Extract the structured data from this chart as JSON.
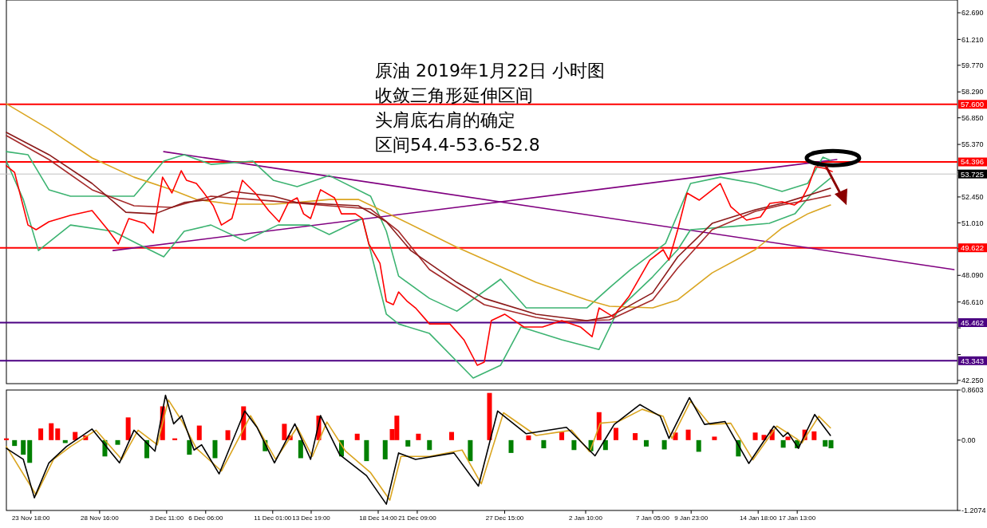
{
  "chart_data": [
    {
      "type": "line",
      "xlim": [
        "2018-11-22T00:00",
        "2019-01-29T00:00"
      ],
      "ylim": [
        42.07,
        63.4
      ],
      "tick_labels": "y",
      "yticks": [
        {
          "value": 62.69,
          "label": "62.690"
        },
        {
          "value": 61.21,
          "label": "61.210"
        },
        {
          "value": 59.77,
          "label": "59.770"
        },
        {
          "value": 58.29,
          "label": "58.290"
        },
        {
          "value": 56.85,
          "label": "56.850"
        },
        {
          "value": 55.37,
          "label": "55.370"
        },
        {
          "value": 53.93,
          "label": null
        },
        {
          "value": 52.45,
          "label": "52.450"
        },
        {
          "value": 51.01,
          "label": "51.010"
        },
        {
          "value": 49.57,
          "label": null
        },
        {
          "value": 48.09,
          "label": "48.090"
        },
        {
          "value": 46.61,
          "label": "46.610"
        },
        {
          "value": 45.17,
          "label": null
        },
        {
          "value": 43.69,
          "label": null
        },
        {
          "value": 42.25,
          "label": "42.250"
        }
      ],
      "annotations": [
        "原油 2019年1月22日 小时图",
        "收敛三角形延伸区间",
        "头肩底右肩的确定",
        "区间54.4-53.6-52.8"
      ],
      "ref_lines": [
        {
          "axis": "y",
          "value": 57.6,
          "label": "57.600",
          "color": "#ff0000"
        },
        {
          "axis": "y",
          "value": 54.396,
          "label": "54.396",
          "color": "#ff0000"
        },
        {
          "axis": "y",
          "value": 53.725,
          "label": "53.725",
          "color": "#c0c0c0"
        },
        {
          "axis": "y",
          "value": 49.622,
          "label": "49.622",
          "color": "#ff0000"
        },
        {
          "axis": "y",
          "value": 45.462,
          "label": "45.462",
          "color": "#4b0082"
        },
        {
          "axis": "y",
          "value": 43.343,
          "label": "43.343",
          "color": "#4b0082"
        }
      ],
      "series": [
        {
          "color": "#800080",
          "x": [
            "2018-12-03T06:00",
            "2019-01-28T18:00"
          ],
          "values": [
            54.97,
            48.41
          ]
        },
        {
          "color": "#800080",
          "x": [
            "2018-11-29T15:00",
            "2019-01-20T09:00"
          ],
          "values": [
            49.47,
            54.53
          ]
        },
        {
          "color": "#3cb371",
          "x": [
            "2018-11-22T00:00",
            "2018-11-23T13:00",
            "2018-11-25T01:00",
            "2018-11-26T14:00",
            "2018-11-28T03:00",
            "2018-12-01T03:00",
            "2018-12-03T06:00",
            "2018-12-04T17:00",
            "2018-12-06T15:00",
            "2018-12-09T15:00",
            "2018-12-11T02:00",
            "2018-12-12T19:00",
            "2018-12-15T02:00",
            "2018-12-18T01:00",
            "2018-12-19T04:00",
            "2018-12-20T01:00",
            "2018-12-22T06:00",
            "2018-12-24T05:00",
            "2018-12-27T08:00",
            "2018-12-29T04:00",
            "2019-01-02T12:00",
            "2019-01-04T07:00",
            "2019-01-05T15:00",
            "2019-01-08T03:00",
            "2019-01-09T22:00",
            "2019-01-12T01:00",
            "2019-01-14T13:00",
            "2019-01-16T11:00",
            "2019-01-18T07:00",
            "2019-01-19T09:00",
            "2019-01-19T22:00"
          ],
          "values": [
            54.97,
            54.8,
            52.85,
            52.49,
            52.49,
            52.49,
            54.44,
            54.8,
            54.26,
            54.44,
            53.38,
            53.02,
            53.64,
            52.49,
            50.54,
            48.05,
            46.81,
            46.1,
            47.88,
            46.28,
            46.28,
            47.52,
            48.41,
            49.87,
            53.2,
            53.55,
            53.2,
            52.76,
            53.2,
            54.66,
            54.49
          ]
        },
        {
          "color": "#3cb371",
          "x": [
            "2018-11-22T00:00",
            "2018-11-23T05:00",
            "2018-11-24T07:00",
            "2018-11-26T14:00",
            "2018-11-29T15:00",
            "2018-12-01T10:00",
            "2018-12-03T06:00",
            "2018-12-04T17:00",
            "2018-12-06T15:00",
            "2018-12-09T01:00",
            "2018-12-11T10:00",
            "2018-12-13T16:00",
            "2018-12-15T02:00",
            "2018-12-17T11:00",
            "2018-12-19T04:00",
            "2018-12-20T01:00",
            "2018-12-22T06:00",
            "2018-12-25T09:00",
            "2018-12-27T08:00",
            "2018-12-28T19:00",
            "2018-12-31T17:00",
            "2019-01-03T09:00",
            "2019-01-04T18:00",
            "2019-01-07T05:00",
            "2019-01-09T00:00",
            "2019-01-09T22:00",
            "2019-01-12T23:00",
            "2019-01-15T13:00",
            "2019-01-17T09:00",
            "2019-01-18T15:00",
            "2019-01-19T22:00"
          ],
          "values": [
            54.44,
            52.31,
            49.47,
            50.89,
            50.54,
            49.83,
            49.12,
            50.54,
            50.89,
            50.01,
            50.89,
            50.89,
            50.36,
            51.25,
            45.93,
            45.39,
            44.86,
            42.38,
            43.09,
            45.22,
            44.51,
            43.97,
            46.19,
            48.01,
            49.52,
            50.63,
            50.81,
            50.98,
            51.51,
            52.67,
            53.49
          ]
        },
        {
          "color": "#daa520",
          "x": [
            "2018-11-22T00:00",
            "2018-11-25T01:00",
            "2018-11-28T03:00",
            "2018-12-01T03:00",
            "2018-12-03T20:00",
            "2018-12-05T14:00",
            "2018-12-08T03:00",
            "2018-12-11T02:00",
            "2018-12-12T19:00",
            "2018-12-15T02:00",
            "2018-12-17T04:00",
            "2018-12-20T01:00",
            "2018-12-24T05:00",
            "2018-12-29T21:00",
            "2019-01-02T12:00",
            "2019-01-04T03:00",
            "2019-01-07T05:00",
            "2019-01-09T00:00",
            "2019-01-11T11:00",
            "2019-01-14T13:00",
            "2019-01-16T11:00",
            "2019-01-18T07:00",
            "2019-01-19T22:00"
          ],
          "values": [
            57.63,
            56.22,
            54.62,
            53.55,
            52.85,
            52.31,
            52.05,
            52.05,
            52.14,
            52.31,
            52.31,
            51.25,
            49.65,
            47.7,
            46.73,
            46.37,
            46.28,
            46.73,
            48.23,
            49.52,
            50.72,
            51.51,
            52.0
          ]
        },
        {
          "color": "#a52a2a",
          "x": [
            "2018-11-22T00:00",
            "2018-11-25T01:00",
            "2018-11-28T03:00",
            "2018-12-01T03:00",
            "2018-12-03T20:00",
            "2018-12-06T15:00",
            "2018-12-11T02:00",
            "2018-12-15T02:00",
            "2018-12-18T01:00",
            "2018-12-20T01:00",
            "2018-12-22T06:00",
            "2018-12-26T04:00",
            "2018-12-29T21:00",
            "2018-12-31T17:00",
            "2019-01-04T03:00",
            "2019-01-07T05:00",
            "2019-01-09T00:00",
            "2019-01-11T11:00",
            "2019-01-14T13:00",
            "2019-01-16T11:00",
            "2019-01-18T07:00",
            "2019-01-19T22:00"
          ],
          "values": [
            55.86,
            54.53,
            52.85,
            51.96,
            51.87,
            52.49,
            52.22,
            51.96,
            51.78,
            50.54,
            48.41,
            46.46,
            45.75,
            45.53,
            45.62,
            46.73,
            48.5,
            50.63,
            51.65,
            52.0,
            52.27,
            52.53
          ]
        },
        {
          "color": "#8b1a1a",
          "x": [
            "2018-11-22T00:00",
            "2018-11-25T01:00",
            "2018-11-28T03:00",
            "2018-11-30T13:00",
            "2018-12-02T15:00",
            "2018-12-04T17:00",
            "2018-12-06T15:00",
            "2018-12-08T03:00",
            "2018-12-11T02:00",
            "2018-12-12T19:00",
            "2018-12-17T04:00",
            "2018-12-19T04:00",
            "2018-12-20T22:00",
            "2018-12-24T05:00",
            "2018-12-26T04:00",
            "2018-12-29T21:00",
            "2019-01-02T12:00",
            "2019-01-04T03:00",
            "2019-01-07T05:00",
            "2019-01-09T00:00",
            "2019-01-11T11:00",
            "2019-01-14T13:00",
            "2019-01-16T11:00",
            "2019-01-18T07:00",
            "2019-01-19T22:00"
          ],
          "values": [
            56.04,
            54.8,
            53.2,
            51.6,
            51.51,
            52.14,
            52.31,
            52.76,
            52.49,
            52.14,
            51.96,
            51.07,
            49.47,
            47.7,
            46.81,
            45.93,
            45.57,
            45.79,
            47.12,
            49.12,
            50.98,
            51.74,
            52.09,
            52.53,
            52.93
          ]
        },
        {
          "color": "#ff0000",
          "x": [
            "2018-11-22T00:00",
            "2018-11-22T14:00",
            "2018-11-23T13:00",
            "2018-11-24T03:00",
            "2018-11-25T01:00",
            "2018-11-26T14:00",
            "2018-11-28T03:00",
            "2018-11-29T06:00",
            "2018-11-30T00:00",
            "2018-11-30T18:00",
            "2018-12-01T21:00",
            "2018-12-02T12:00",
            "2018-12-03T04:00",
            "2018-12-03T20:00",
            "2018-12-04T12:00",
            "2018-12-04T21:00",
            "2018-12-05T14:00",
            "2018-12-06T01:00",
            "2018-12-06T19:00",
            "2018-12-07T09:00",
            "2018-12-08T03:00",
            "2018-12-08T21:00",
            "2018-12-09T19:00",
            "2018-12-10T18:00",
            "2018-12-11T12:00",
            "2018-12-12T04:00",
            "2018-12-12T19:00",
            "2018-12-13T06:00",
            "2018-12-13T18:00",
            "2018-12-14T11:00",
            "2018-12-15T11:00",
            "2018-12-15T23:00",
            "2018-12-16T23:00",
            "2018-12-17T11:00",
            "2018-12-17T22:00",
            "2018-12-18T17:00",
            "2018-12-19T04:00",
            "2018-12-19T16:00",
            "2018-12-20T01:00",
            "2018-12-20T16:00",
            "2018-12-21T06:00",
            "2018-12-22T06:00",
            "2018-12-23T17:00",
            "2018-12-24T17:00",
            "2018-12-25T16:00",
            "2018-12-26T04:00",
            "2018-12-26T16:00",
            "2018-12-27T15:00",
            "2018-12-29T00:00",
            "2018-12-30T08:00",
            "2018-12-31T17:00",
            "2019-01-02T01:00",
            "2019-01-02T21:00",
            "2019-01-03T09:00",
            "2019-01-04T09:00",
            "2019-01-05T12:00",
            "2019-01-07T00:00",
            "2019-01-07T23:00",
            "2019-01-08T09:00",
            "2019-01-09T00:00",
            "2019-01-09T16:00",
            "2019-01-10T13:00",
            "2019-01-12T01:00",
            "2019-01-12T19:00",
            "2019-01-13T22:00",
            "2019-01-14T22:00",
            "2019-01-15T14:00",
            "2019-01-16T11:00",
            "2019-01-17T08:00",
            "2019-01-17T20:00",
            "2019-01-18T08:00",
            "2019-01-18T20:00",
            "2019-01-19T12:00",
            "2019-01-20T01:00"
          ],
          "values": [
            54.18,
            53.82,
            50.89,
            50.63,
            51.07,
            51.43,
            51.69,
            50.63,
            49.83,
            51.25,
            50.98,
            50.45,
            53.55,
            52.67,
            53.91,
            53.38,
            53.2,
            52.76,
            51.96,
            50.89,
            51.25,
            53.38,
            52.67,
            51.69,
            51.07,
            52.14,
            52.4,
            51.51,
            51.25,
            52.85,
            52.4,
            51.51,
            51.51,
            51.25,
            49.83,
            48.76,
            46.64,
            46.46,
            47.17,
            46.64,
            46.28,
            45.39,
            45.39,
            44.51,
            43.09,
            43.27,
            45.57,
            45.93,
            45.22,
            45.22,
            45.57,
            45.22,
            44.68,
            46.28,
            45.79,
            46.9,
            48.94,
            49.52,
            48.94,
            50.63,
            52.67,
            52.27,
            53.2,
            51.91,
            51.16,
            51.34,
            52.09,
            52.18,
            52.0,
            52.27,
            53.02,
            54.13,
            54.04,
            53.86
          ]
        }
      ]
    },
    {
      "type": "bar",
      "xlim": [
        "2018-11-22T00:00",
        "2019-01-29T00:00"
      ],
      "ylim": [
        -1.2074,
        0.8603
      ],
      "yticks": [
        0.8603,
        {
          "value": 0,
          "label": "0.00"
        },
        -1.2074
      ],
      "xticks": [
        {
          "value": "2018-11-23T18:00",
          "label": "23 Nov 18:00"
        },
        {
          "value": "2018-11-28T16:00",
          "label": "28 Nov 16:00"
        },
        {
          "value": "2018-12-03T11:00",
          "label": "3 Dec 11:00"
        },
        {
          "value": "2018-12-06T06:00",
          "label": "6 Dec 06:00"
        },
        {
          "value": "2018-12-11T01:00",
          "label": "11 Dec 01:00"
        },
        {
          "value": "2018-12-13T19:00",
          "label": "13 Dec 19:00"
        },
        {
          "value": "2018-12-18T14:00",
          "label": "18 Dec 14:00"
        },
        {
          "value": "2018-12-21T09:00",
          "label": "21 Dec 09:00"
        },
        {
          "value": "2018-12-27T15:00",
          "label": "27 Dec 15:00"
        },
        {
          "value": "2019-01-02T10:00",
          "label": "2 Jan 10:00"
        },
        {
          "value": "2019-01-07T05:00",
          "label": "7 Jan 05:00"
        },
        {
          "value": "2019-01-09T23:00",
          "label": "9 Jan 23:00"
        },
        {
          "value": "2019-01-14T18:00",
          "label": "14 Jan 18:00"
        },
        {
          "value": "2019-01-17T13:00",
          "label": "17 Jan 13:00"
        }
      ],
      "series": [
        {
          "color": "#ff0000",
          "x": [
            "2018-11-22T00:00",
            "2018-11-24T11:00",
            "2018-11-25T05:00",
            "2018-11-25T16:00",
            "2018-11-26T22:00",
            "2018-11-27T16:00",
            "2018-11-30T17:00",
            "2018-12-03T04:00",
            "2018-12-04T01:00",
            "2018-12-05T19:00",
            "2018-12-07T20:00",
            "2018-12-08T23:00",
            "2018-12-11T21:00",
            "2018-12-12T07:00",
            "2018-12-14T08:00",
            "2018-12-17T02:00",
            "2018-12-19T14:00",
            "2018-12-19T22:00",
            "2018-12-21T11:00",
            "2018-12-23T20:00",
            "2018-12-26T13:00",
            "2018-12-29T08:00",
            "2018-12-31T17:00",
            "2019-01-03T09:00",
            "2019-01-04T14:00",
            "2019-01-05T23:00",
            "2019-01-08T20:00",
            "2019-01-09T18:00",
            "2019-01-11T15:00",
            "2019-01-14T13:00",
            "2019-01-15T04:00",
            "2019-01-15T18:00",
            "2019-01-16T21:00",
            "2019-01-18T02:00",
            "2019-01-18T18:00"
          ],
          "values": [
            0.03,
            0.2,
            0.29,
            0.2,
            0.14,
            0.08,
            0.39,
            0.58,
            0.03,
            0.25,
            0.17,
            0.58,
            0.28,
            0.08,
            0.42,
            0.11,
            0.19,
            0.42,
            0.11,
            0.14,
            0.81,
            0.08,
            0.14,
            0.48,
            0.21,
            0.12,
            0.13,
            0.18,
            0.06,
            0.13,
            0.09,
            0.18,
            0.06,
            0.18,
            0.15
          ]
        },
        {
          "color": "#008000",
          "x": [
            "2018-11-22T14:00",
            "2018-11-23T05:00",
            "2018-11-23T16:00",
            "2018-11-26T05:00",
            "2018-11-29T01:00",
            "2018-11-29T23:00",
            "2018-12-02T01:00",
            "2018-12-05T02:00",
            "2018-12-06T22:00",
            "2018-12-10T12:00",
            "2018-12-13T01:00",
            "2018-12-15T23:00",
            "2018-12-17T18:00",
            "2018-12-19T02:00",
            "2018-12-20T17:00",
            "2018-12-22T06:00",
            "2018-12-25T04:00",
            "2018-12-28T02:00",
            "2018-12-30T10:00",
            "2019-01-01T14:00",
            "2019-01-02T19:00",
            "2019-01-03T20:00",
            "2019-01-06T18:00",
            "2019-01-08T01:00",
            "2019-01-10T12:00",
            "2019-01-13T08:00",
            "2019-01-16T13:00",
            "2019-01-17T13:00",
            "2019-01-19T13:00",
            "2019-01-19T23:00"
          ],
          "values": [
            -0.1,
            -0.25,
            -0.39,
            -0.05,
            -0.28,
            -0.08,
            -0.31,
            -0.25,
            -0.31,
            -0.19,
            -0.31,
            -0.28,
            -0.36,
            -0.33,
            -0.11,
            -0.17,
            -0.36,
            -0.22,
            -0.14,
            -0.17,
            -0.19,
            -0.17,
            -0.11,
            -0.16,
            -0.2,
            -0.28,
            -0.13,
            -0.14,
            -0.11,
            -0.14
          ]
        },
        {
          "type": "line",
          "color": "#daa520",
          "x": [
            "2018-11-22T00:00",
            "2018-11-24T03:00",
            "2018-11-25T09:00",
            "2018-11-26T14:00",
            "2018-11-28T10:00",
            "2018-11-30T06:00",
            "2018-12-01T10:00",
            "2018-12-02T19:00",
            "2018-12-03T14:00",
            "2018-12-04T13:00",
            "2018-12-05T14:00",
            "2018-12-07T09:00",
            "2018-12-09T11:00",
            "2018-12-11T06:00",
            "2018-12-12T19:00",
            "2018-12-13T21:00",
            "2018-12-14T22:00",
            "2018-12-16T06:00",
            "2018-12-18T01:00",
            "2018-12-19T10:00",
            "2018-12-20T05:00",
            "2018-12-22T06:00",
            "2018-12-24T14:00",
            "2018-12-25T23:00",
            "2018-12-27T13:00",
            "2018-12-29T21:00",
            "2019-01-01T10:00",
            "2019-01-02T17:00",
            "2019-01-03T11:00",
            "2019-01-04T18:00",
            "2019-01-06T11:00",
            "2019-01-07T23:00",
            "2019-01-08T14:00",
            "2019-01-09T22:00",
            "2019-01-11T07:00",
            "2019-01-12T19:00",
            "2019-01-14T09:00",
            "2019-01-16T02:00",
            "2019-01-17T11:00",
            "2019-01-17T21:00",
            "2019-01-19T02:00",
            "2019-01-19T22:00"
          ],
          "values": [
            -0.11,
            -0.94,
            -0.33,
            -0.11,
            0.17,
            -0.33,
            0.17,
            -0.08,
            0.69,
            0.33,
            -0.14,
            -0.53,
            0.42,
            -0.33,
            0.22,
            -0.28,
            0.31,
            -0.19,
            -0.56,
            -1.03,
            -0.28,
            -0.28,
            -0.17,
            -0.75,
            0.47,
            0.08,
            0.17,
            -0.2,
            0.29,
            0.32,
            0.53,
            0.41,
            0.03,
            0.67,
            0.27,
            0.29,
            -0.34,
            0.24,
            0.03,
            -0.05,
            0.41,
            0.21
          ]
        },
        {
          "type": "line",
          "color": "#000000",
          "x": [
            "2018-11-22T00:00",
            "2018-11-23T05:00",
            "2018-11-24T00:00",
            "2018-11-25T01:00",
            "2018-11-26T07:00",
            "2018-11-28T03:00",
            "2018-11-30T02:00",
            "2018-12-01T03:00",
            "2018-12-02T15:00",
            "2018-12-03T09:00",
            "2018-12-03T23:00",
            "2018-12-04T13:00",
            "2018-12-05T10:00",
            "2018-12-05T23:00",
            "2018-12-07T05:00",
            "2018-12-09T01:00",
            "2018-12-09T22:00",
            "2018-12-11T04:00",
            "2018-12-12T15:00",
            "2018-12-13T18:00",
            "2018-12-14T11:00",
            "2018-12-15T20:00",
            "2018-12-17T18:00",
            "2018-12-19T04:00",
            "2018-12-20T01:00",
            "2018-12-21T06:00",
            "2018-12-24T00:00",
            "2018-12-25T18:00",
            "2018-12-27T03:00",
            "2018-12-29T04:00",
            "2019-01-01T01:00",
            "2019-01-03T02:00",
            "2019-01-04T11:00",
            "2019-01-06T07:00",
            "2019-01-07T18:00",
            "2019-01-08T09:00",
            "2019-01-09T20:00",
            "2019-01-10T22:00",
            "2019-01-12T09:00",
            "2019-01-14T02:00",
            "2019-01-15T21:00",
            "2019-01-16T13:00",
            "2019-01-16T21:00",
            "2019-01-17T15:00",
            "2019-01-18T19:00",
            "2019-01-19T22:00"
          ],
          "values": [
            -0.14,
            -0.33,
            -0.99,
            -0.39,
            -0.11,
            0.19,
            -0.39,
            0.17,
            -0.19,
            0.77,
            0.28,
            0.42,
            -0.17,
            -0.08,
            -0.58,
            0.5,
            0.22,
            -0.39,
            0.28,
            -0.33,
            0.42,
            -0.25,
            -0.61,
            -1.1,
            -0.22,
            -0.33,
            -0.22,
            -0.79,
            0.5,
            0.11,
            0.22,
            -0.27,
            0.27,
            0.61,
            0.41,
            0.03,
            0.73,
            0.27,
            0.32,
            -0.4,
            0.24,
            0.06,
            0.13,
            -0.14,
            0.44,
            0.08
          ]
        }
      ]
    }
  ]
}
